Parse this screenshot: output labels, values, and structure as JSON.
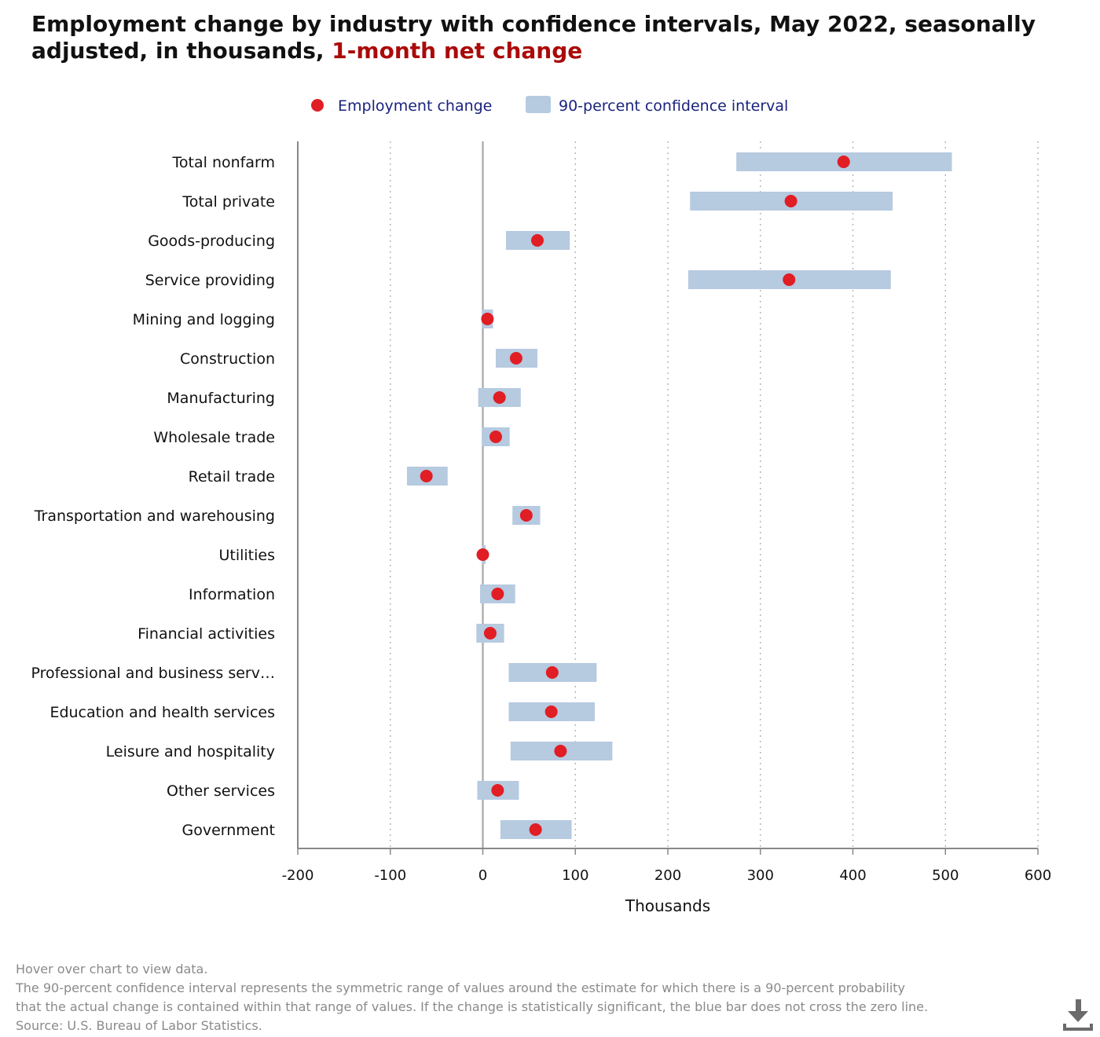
{
  "title": {
    "main": "Employment change by industry with confidence intervals, May 2022, seasonally adjusted, in thousands,",
    "highlight": "1-month net change"
  },
  "notes": {
    "hover": "Hover over chart to view data.",
    "line1": "The 90-percent confidence interval represents the symmetric range of values around the estimate for which there is a 90-percent probability",
    "line2": "that the actual change is contained within that range of values. If the change is statistically significant, the blue bar does not cross the zero line.",
    "source": "Source: U.S. Bureau of Labor Statistics."
  },
  "colors": {
    "point": "#e01e24",
    "interval": "#b6cae0",
    "legend_text": "#1a237e",
    "axis": "#888888",
    "zero_line": "#b0b0b0",
    "grid": "#b8b8b8",
    "label": "#111111"
  },
  "icons": {
    "download": "download-icon"
  },
  "chart_data": {
    "type": "dot-interval",
    "xlabel": "Thousands",
    "xlim": [
      -200,
      600
    ],
    "xticks": [
      -200,
      -100,
      0,
      100,
      200,
      300,
      400,
      500,
      600
    ],
    "grid": "vertical dotted",
    "legend_position": "top-center",
    "legend": [
      {
        "key": "point",
        "label": "Employment change"
      },
      {
        "key": "interval",
        "label": "90-percent confidence interval"
      }
    ],
    "categories": [
      "Total nonfarm",
      "Total private",
      "Goods-producing",
      "Service providing",
      "Mining and logging",
      "Construction",
      "Manufacturing",
      "Wholesale trade",
      "Retail trade",
      "Transportation and warehousing",
      "Utilities",
      "Information",
      "Financial activities",
      "Professional and business serv…",
      "Education and health services",
      "Leisure and hospitality",
      "Other services",
      "Government"
    ],
    "values": [
      390,
      333,
      59,
      331,
      5,
      36,
      18,
      14,
      -61,
      47,
      0,
      16,
      8,
      75,
      74,
      84,
      16,
      57
    ],
    "ci_low": [
      274,
      224,
      25,
      222,
      -1,
      14,
      -5,
      -1,
      -82,
      32,
      -1,
      -3,
      -7,
      28,
      28,
      30,
      -6,
      19
    ],
    "ci_high": [
      507,
      443,
      94,
      441,
      11,
      59,
      41,
      29,
      -38,
      62,
      3,
      35,
      23,
      123,
      121,
      140,
      39,
      96
    ]
  }
}
